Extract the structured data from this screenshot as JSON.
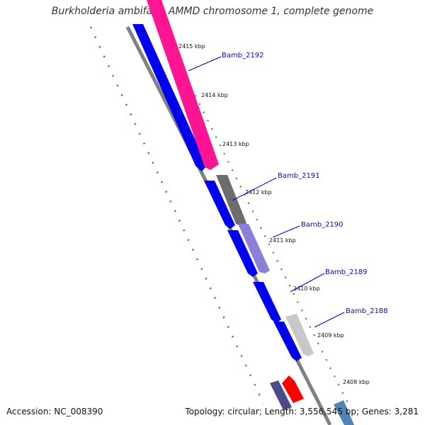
{
  "title": "Burkholderia ambifaria AMMD chromosome 1, complete genome",
  "footer": {
    "accession": "Accession: NC_008390",
    "summary": "Topology: circular; Length: 3,556,545 bp; Genes: 3,281"
  },
  "ticks": [
    "2415 kbp",
    "2414 kbp",
    "2413 kbp",
    "2412 kbp",
    "2411 kbp",
    "2410 kbp",
    "2409 kbp",
    "2408 kbp"
  ],
  "gene_labels": [
    "Bamb_2192",
    "Bamb_2191",
    "Bamb_2190",
    "Bamb_2189",
    "Bamb_2188"
  ],
  "colors": {
    "cds_track": "#0000ee",
    "bamb_2192": "#ff1493",
    "bamb_2191": "#6d6d6d",
    "bamb_2190": "#8b80d8",
    "bamb_2188": "#c8c8c8",
    "red_gene": "#ff0000",
    "dark_gene": "#4b4b8c",
    "steel_gene": "#4f83b5",
    "backbone": "#808080",
    "ticks": "#228b22",
    "label_lines": "#0000cc"
  }
}
